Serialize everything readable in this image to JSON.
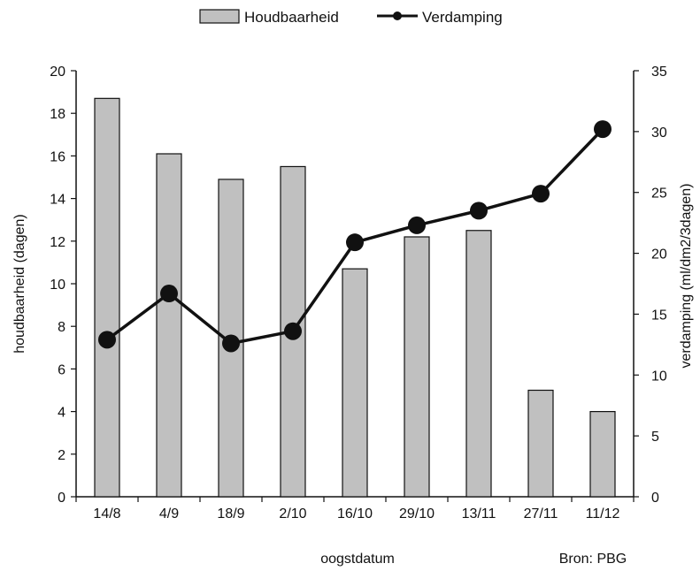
{
  "chart_data": {
    "type": "bar",
    "categories": [
      "14/8",
      "4/9",
      "18/9",
      "2/10",
      "16/10",
      "29/10",
      "13/11",
      "27/11",
      "11/12"
    ],
    "series": [
      {
        "name": "Houdbaarheid",
        "type": "bar",
        "axis": "left",
        "values": [
          18.7,
          16.1,
          14.9,
          15.5,
          10.7,
          12.2,
          12.5,
          5.0,
          4.0
        ]
      },
      {
        "name": "Verdamping",
        "type": "line",
        "axis": "right",
        "values": [
          12.9,
          16.7,
          12.6,
          13.6,
          20.9,
          22.3,
          23.5,
          24.9,
          30.2
        ]
      }
    ],
    "xlabel": "oogstdatum",
    "ylabel": "houdbaarheid  (dagen)",
    "y2label": "verdamping  (ml/dm2/3dagen)",
    "ylim": [
      0,
      20
    ],
    "yticks": [
      0,
      2,
      4,
      6,
      8,
      10,
      12,
      14,
      16,
      18,
      20
    ],
    "y2lim": [
      0,
      35
    ],
    "y2ticks": [
      0,
      5,
      10,
      15,
      20,
      25,
      30,
      35
    ],
    "legend_position": "top",
    "grid": false,
    "source": "Bron: PBG",
    "colors": {
      "bar_fill": "#c0c0c0",
      "bar_stroke": "#111111",
      "line": "#111111",
      "marker": "#111111"
    }
  }
}
